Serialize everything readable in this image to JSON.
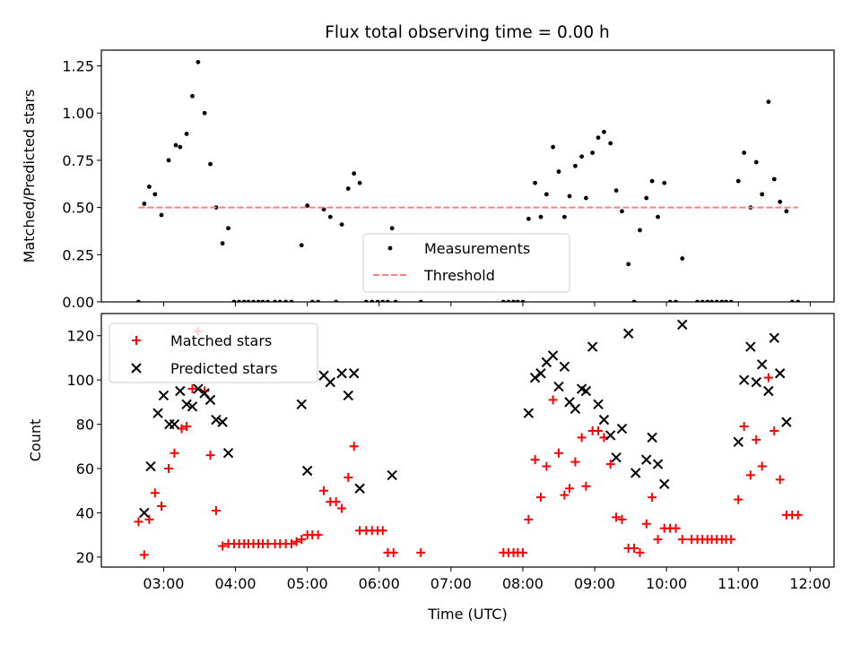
{
  "chart_data": [
    {
      "type": "scatter",
      "title": "Flux total observing time = 0.00 h",
      "xlabel": "",
      "ylabel": "Matched/Predicted stars",
      "xlim": [
        2.133,
        12.333
      ],
      "ylim": [
        0,
        1.3333
      ],
      "yticks": [
        0,
        0.25,
        0.5,
        0.75,
        1.0,
        1.25
      ],
      "ytick_labels": [
        "0.00",
        "0.25",
        "0.50",
        "0.75",
        "1.00",
        "1.25"
      ],
      "xticks": [
        3,
        4,
        5,
        6,
        7,
        8,
        9,
        10,
        11,
        12
      ],
      "xtick_labels": [
        "03:00",
        "04:00",
        "05:00",
        "06:00",
        "07:00",
        "08:00",
        "09:00",
        "10:00",
        "11:00",
        "12:00"
      ],
      "show_xtick_labels": false,
      "legend_position": "lower-center",
      "series": [
        {
          "name": "Measurements",
          "marker": "dot",
          "color": "#000000",
          "points": [
            [
              2.65,
              0.0
            ],
            [
              2.73,
              0.52
            ],
            [
              2.8,
              0.61
            ],
            [
              2.88,
              0.57
            ],
            [
              2.97,
              0.46
            ],
            [
              3.07,
              0.75
            ],
            [
              3.17,
              0.83
            ],
            [
              3.23,
              0.82
            ],
            [
              3.32,
              0.89
            ],
            [
              3.4,
              1.09
            ],
            [
              3.48,
              1.27
            ],
            [
              3.57,
              1.0
            ],
            [
              3.65,
              0.73
            ],
            [
              3.73,
              0.5
            ],
            [
              3.82,
              0.31
            ],
            [
              3.9,
              0.39
            ],
            [
              3.98,
              0.0
            ],
            [
              4.05,
              0.0
            ],
            [
              4.12,
              0.0
            ],
            [
              4.18,
              0.0
            ],
            [
              4.25,
              0.0
            ],
            [
              4.32,
              0.0
            ],
            [
              4.38,
              0.0
            ],
            [
              4.45,
              0.0
            ],
            [
              4.55,
              0.0
            ],
            [
              4.62,
              0.0
            ],
            [
              4.7,
              0.0
            ],
            [
              4.78,
              0.0
            ],
            [
              4.92,
              0.3
            ],
            [
              5.0,
              0.51
            ],
            [
              5.07,
              0.0
            ],
            [
              5.15,
              0.0
            ],
            [
              5.23,
              0.49
            ],
            [
              5.32,
              0.45
            ],
            [
              5.4,
              0.0
            ],
            [
              5.48,
              0.41
            ],
            [
              5.57,
              0.6
            ],
            [
              5.65,
              0.68
            ],
            [
              5.73,
              0.63
            ],
            [
              5.82,
              0.0
            ],
            [
              5.9,
              0.0
            ],
            [
              5.98,
              0.0
            ],
            [
              6.05,
              0.0
            ],
            [
              6.12,
              0.0
            ],
            [
              6.18,
              0.39
            ],
            [
              6.23,
              0.0
            ],
            [
              6.58,
              0.0
            ],
            [
              7.73,
              0.0
            ],
            [
              7.8,
              0.0
            ],
            [
              7.87,
              0.0
            ],
            [
              7.93,
              0.0
            ],
            [
              8.0,
              0.0
            ],
            [
              8.08,
              0.44
            ],
            [
              8.17,
              0.63
            ],
            [
              8.25,
              0.45
            ],
            [
              8.33,
              0.57
            ],
            [
              8.42,
              0.82
            ],
            [
              8.5,
              0.69
            ],
            [
              8.58,
              0.45
            ],
            [
              8.65,
              0.56
            ],
            [
              8.73,
              0.72
            ],
            [
              8.82,
              0.77
            ],
            [
              8.88,
              0.55
            ],
            [
              8.97,
              0.79
            ],
            [
              9.05,
              0.87
            ],
            [
              9.13,
              0.9
            ],
            [
              9.22,
              0.84
            ],
            [
              9.3,
              0.59
            ],
            [
              9.38,
              0.48
            ],
            [
              9.47,
              0.2
            ],
            [
              9.55,
              0.0
            ],
            [
              9.63,
              0.38
            ],
            [
              9.72,
              0.55
            ],
            [
              9.8,
              0.64
            ],
            [
              9.88,
              0.45
            ],
            [
              9.97,
              0.63
            ],
            [
              10.05,
              0.0
            ],
            [
              10.13,
              0.0
            ],
            [
              10.22,
              0.23
            ],
            [
              10.43,
              0.0
            ],
            [
              10.5,
              0.0
            ],
            [
              10.57,
              0.0
            ],
            [
              10.63,
              0.0
            ],
            [
              10.7,
              0.0
            ],
            [
              10.77,
              0.0
            ],
            [
              10.83,
              0.0
            ],
            [
              10.9,
              0.0
            ],
            [
              11.0,
              0.64
            ],
            [
              11.08,
              0.79
            ],
            [
              11.17,
              0.5
            ],
            [
              11.25,
              0.74
            ],
            [
              11.33,
              0.57
            ],
            [
              11.42,
              1.06
            ],
            [
              11.5,
              0.65
            ],
            [
              11.58,
              0.53
            ],
            [
              11.67,
              0.48
            ],
            [
              11.75,
              0.0
            ],
            [
              11.83,
              0.0
            ]
          ]
        },
        {
          "name": "Threshold",
          "style": "dashed",
          "color": "#ff7f7f",
          "x": [
            2.65,
            11.83
          ],
          "y": [
            0.5,
            0.5
          ]
        }
      ]
    },
    {
      "type": "scatter",
      "title": "",
      "xlabel": "Time (UTC)",
      "ylabel": "Count",
      "xlim": [
        2.133,
        12.333
      ],
      "ylim": [
        15.5,
        130.0
      ],
      "yticks": [
        20,
        40,
        60,
        80,
        100,
        120
      ],
      "ytick_labels": [
        "20",
        "40",
        "60",
        "80",
        "100",
        "120"
      ],
      "xticks": [
        3,
        4,
        5,
        6,
        7,
        8,
        9,
        10,
        11,
        12
      ],
      "xtick_labels": [
        "03:00",
        "04:00",
        "05:00",
        "06:00",
        "07:00",
        "08:00",
        "09:00",
        "10:00",
        "11:00",
        "12:00"
      ],
      "show_xtick_labels": true,
      "legend_position": "upper-left",
      "series": [
        {
          "name": "Matched stars",
          "marker": "plus",
          "color": "#ff0000",
          "points": [
            [
              2.65,
              36
            ],
            [
              2.73,
              21
            ],
            [
              2.8,
              37
            ],
            [
              2.88,
              49
            ],
            [
              2.97,
              43
            ],
            [
              3.07,
              60
            ],
            [
              3.15,
              67
            ],
            [
              3.25,
              78
            ],
            [
              3.32,
              79
            ],
            [
              3.4,
              96
            ],
            [
              3.48,
              122
            ],
            [
              3.57,
              95
            ],
            [
              3.65,
              66
            ],
            [
              3.73,
              41
            ],
            [
              3.82,
              25
            ],
            [
              3.9,
              26
            ],
            [
              3.98,
              26
            ],
            [
              4.05,
              26
            ],
            [
              4.12,
              26
            ],
            [
              4.18,
              26
            ],
            [
              4.25,
              26
            ],
            [
              4.32,
              26
            ],
            [
              4.38,
              26
            ],
            [
              4.45,
              26
            ],
            [
              4.55,
              26
            ],
            [
              4.62,
              26
            ],
            [
              4.7,
              26
            ],
            [
              4.78,
              26
            ],
            [
              4.85,
              27
            ],
            [
              4.92,
              28
            ],
            [
              5.0,
              30
            ],
            [
              5.07,
              30
            ],
            [
              5.15,
              30
            ],
            [
              5.23,
              50
            ],
            [
              5.32,
              45
            ],
            [
              5.4,
              45
            ],
            [
              5.48,
              42
            ],
            [
              5.57,
              56
            ],
            [
              5.65,
              70
            ],
            [
              5.73,
              32
            ],
            [
              5.82,
              32
            ],
            [
              5.9,
              32
            ],
            [
              5.98,
              32
            ],
            [
              6.05,
              32
            ],
            [
              6.12,
              22
            ],
            [
              6.2,
              22
            ],
            [
              6.58,
              22
            ],
            [
              7.73,
              22
            ],
            [
              7.8,
              22
            ],
            [
              7.87,
              22
            ],
            [
              7.93,
              22
            ],
            [
              8.0,
              22
            ],
            [
              8.08,
              37
            ],
            [
              8.17,
              64
            ],
            [
              8.25,
              47
            ],
            [
              8.33,
              61
            ],
            [
              8.42,
              91
            ],
            [
              8.5,
              67
            ],
            [
              8.58,
              48
            ],
            [
              8.65,
              51
            ],
            [
              8.73,
              63
            ],
            [
              8.82,
              74
            ],
            [
              8.88,
              52
            ],
            [
              8.97,
              77
            ],
            [
              9.05,
              77
            ],
            [
              9.13,
              74
            ],
            [
              9.22,
              62
            ],
            [
              9.3,
              38
            ],
            [
              9.38,
              37
            ],
            [
              9.47,
              24
            ],
            [
              9.55,
              24
            ],
            [
              9.63,
              22
            ],
            [
              9.72,
              35
            ],
            [
              9.8,
              47
            ],
            [
              9.88,
              28
            ],
            [
              9.97,
              33
            ],
            [
              10.05,
              33
            ],
            [
              10.13,
              33
            ],
            [
              10.22,
              28
            ],
            [
              10.35,
              28
            ],
            [
              10.43,
              28
            ],
            [
              10.5,
              28
            ],
            [
              10.57,
              28
            ],
            [
              10.63,
              28
            ],
            [
              10.7,
              28
            ],
            [
              10.77,
              28
            ],
            [
              10.83,
              28
            ],
            [
              10.9,
              28
            ],
            [
              11.0,
              46
            ],
            [
              11.08,
              79
            ],
            [
              11.17,
              57
            ],
            [
              11.25,
              73
            ],
            [
              11.33,
              61
            ],
            [
              11.42,
              101
            ],
            [
              11.5,
              77
            ],
            [
              11.58,
              55
            ],
            [
              11.67,
              39
            ],
            [
              11.75,
              39
            ],
            [
              11.83,
              39
            ]
          ]
        },
        {
          "name": "Predicted stars",
          "marker": "x",
          "color": "#000000",
          "points": [
            [
              2.73,
              40
            ],
            [
              2.82,
              61
            ],
            [
              2.92,
              85
            ],
            [
              3.0,
              93
            ],
            [
              3.08,
              80
            ],
            [
              3.15,
              80
            ],
            [
              3.23,
              95
            ],
            [
              3.32,
              89
            ],
            [
              3.4,
              88
            ],
            [
              3.48,
              96
            ],
            [
              3.57,
              94
            ],
            [
              3.65,
              91
            ],
            [
              3.73,
              82
            ],
            [
              3.82,
              81
            ],
            [
              3.9,
              67
            ],
            [
              4.92,
              89
            ],
            [
              5.0,
              59
            ],
            [
              5.23,
              102
            ],
            [
              5.32,
              99
            ],
            [
              5.48,
              103
            ],
            [
              5.57,
              93
            ],
            [
              5.65,
              103
            ],
            [
              5.73,
              51
            ],
            [
              6.18,
              57
            ],
            [
              8.08,
              85
            ],
            [
              8.17,
              101
            ],
            [
              8.25,
              103
            ],
            [
              8.33,
              108
            ],
            [
              8.42,
              111
            ],
            [
              8.5,
              97
            ],
            [
              8.58,
              106
            ],
            [
              8.65,
              90
            ],
            [
              8.73,
              87
            ],
            [
              8.82,
              96
            ],
            [
              8.88,
              95
            ],
            [
              8.97,
              115
            ],
            [
              9.05,
              89
            ],
            [
              9.13,
              82
            ],
            [
              9.22,
              75
            ],
            [
              9.3,
              65
            ],
            [
              9.38,
              78
            ],
            [
              9.47,
              121
            ],
            [
              9.57,
              58
            ],
            [
              9.72,
              64
            ],
            [
              9.8,
              74
            ],
            [
              9.88,
              62
            ],
            [
              9.97,
              53
            ],
            [
              10.22,
              125
            ],
            [
              11.0,
              72
            ],
            [
              11.08,
              100
            ],
            [
              11.17,
              115
            ],
            [
              11.25,
              99
            ],
            [
              11.33,
              107
            ],
            [
              11.42,
              95
            ],
            [
              11.5,
              119
            ],
            [
              11.58,
              103
            ],
            [
              11.67,
              81
            ]
          ]
        }
      ]
    }
  ]
}
